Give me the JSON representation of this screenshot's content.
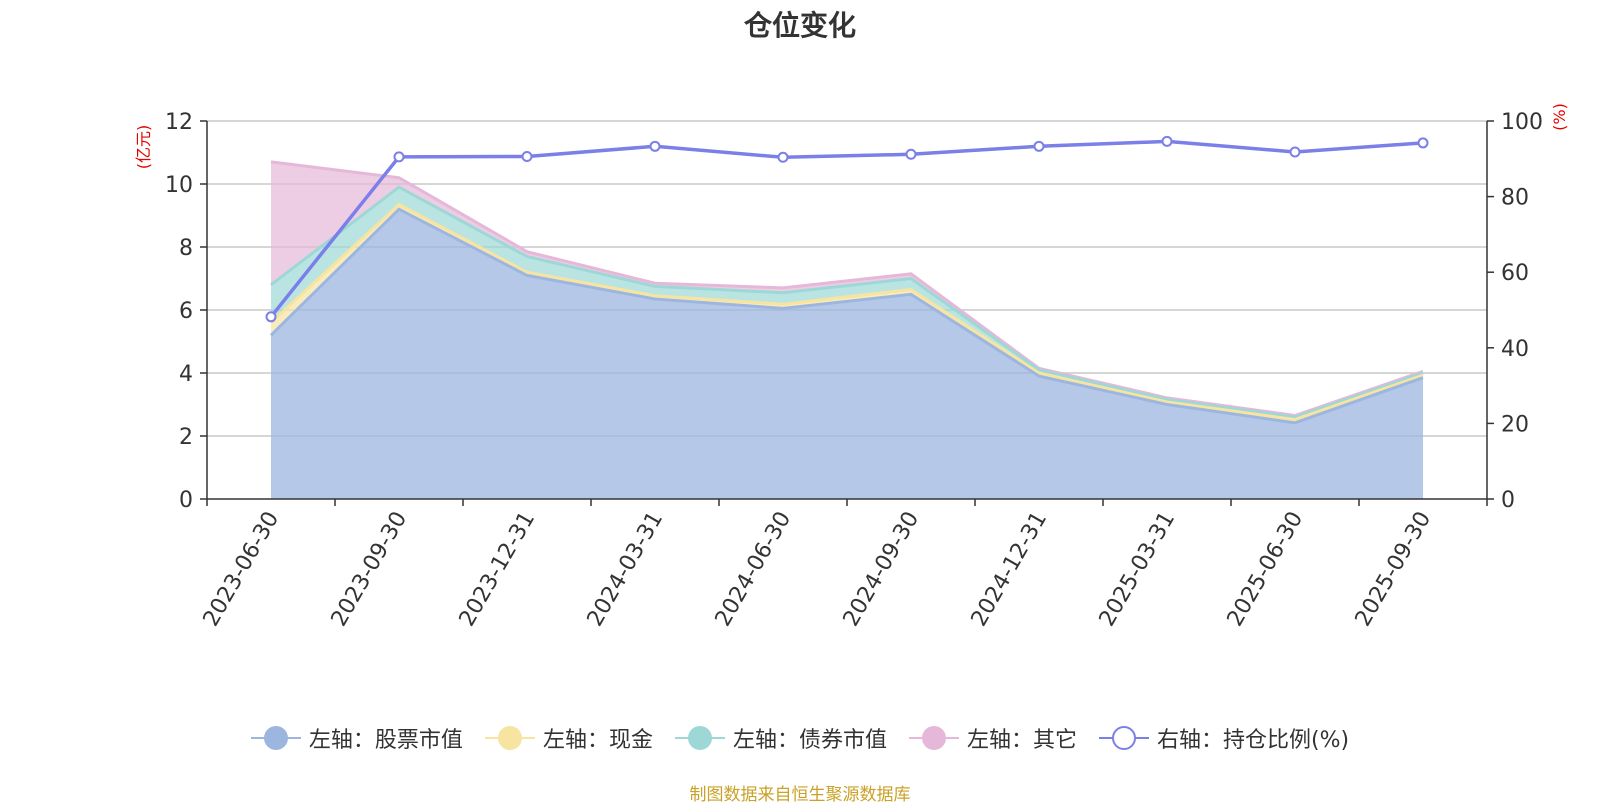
{
  "chart_data": {
    "type": "area",
    "title": "仓位变化",
    "left_axis": {
      "unit_label": "(亿元)",
      "ylim": [
        0,
        12
      ],
      "ticks": [
        0,
        2,
        4,
        6,
        8,
        10,
        12
      ]
    },
    "right_axis": {
      "unit_label": "(%)",
      "ylim": [
        0,
        100
      ],
      "ticks": [
        0,
        20,
        40,
        60,
        80,
        100
      ]
    },
    "categories": [
      "2023-06-30",
      "2023-09-30",
      "2023-12-31",
      "2024-03-31",
      "2024-06-30",
      "2024-09-30",
      "2024-12-31",
      "2025-03-31",
      "2025-06-30",
      "2025-09-30"
    ],
    "stacked": true,
    "series": [
      {
        "name": "左轴：股票市值",
        "axis": "left",
        "type": "area",
        "color": "#9db6e0",
        "values": [
          5.2,
          9.2,
          7.1,
          6.35,
          6.05,
          6.5,
          3.9,
          3.0,
          2.42,
          3.85
        ]
      },
      {
        "name": "左轴：现金",
        "axis": "left",
        "type": "area",
        "color": "#f7e4a0",
        "values": [
          0.4,
          0.15,
          0.1,
          0.1,
          0.13,
          0.15,
          0.1,
          0.08,
          0.1,
          0.08
        ]
      },
      {
        "name": "左轴：债券市值",
        "axis": "left",
        "type": "area",
        "color": "#9dd8d6",
        "values": [
          1.2,
          0.55,
          0.5,
          0.3,
          0.37,
          0.35,
          0.1,
          0.08,
          0.08,
          0.07
        ]
      },
      {
        "name": "左轴：其它",
        "axis": "left",
        "type": "area",
        "color": "#e5b8d9",
        "values": [
          3.9,
          0.3,
          0.15,
          0.1,
          0.15,
          0.15,
          0.05,
          0.05,
          0.05,
          0.05
        ]
      },
      {
        "name": "右轴：持仓比例(%)",
        "axis": "right",
        "type": "line",
        "color": "#7b7fe8",
        "values": [
          48.2,
          90.5,
          90.6,
          93.3,
          90.4,
          91.2,
          93.3,
          94.6,
          91.8,
          94.2
        ]
      }
    ],
    "source": "制图数据来自恒生聚源数据库"
  }
}
